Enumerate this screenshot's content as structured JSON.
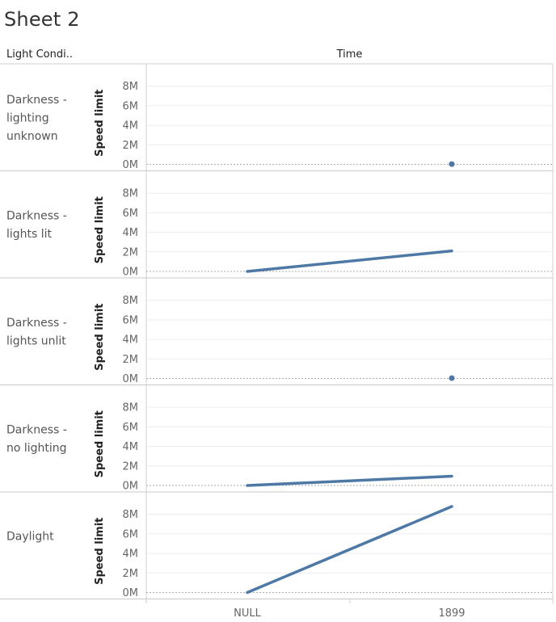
{
  "sheet": {
    "title": "Sheet 2"
  },
  "headers": {
    "row_field": "Light Condi..",
    "column_field": "Time"
  },
  "chart_data": {
    "type": "line",
    "title": "Sheet 2",
    "row_dimension": "Light Condi..",
    "xlabel": "Time",
    "ylabel": "Speed limit",
    "categories": [
      "NULL",
      "1899"
    ],
    "yticks": [
      "0M",
      "2M",
      "4M",
      "6M",
      "8M"
    ],
    "ylim": [
      0,
      8800000
    ],
    "grid": true,
    "line_color": "#4e79a7",
    "panels": [
      {
        "label": "Darkness - lighting unknown",
        "label_lines": [
          "Darkness -",
          "lighting",
          "unknown"
        ],
        "values": [
          null,
          30000
        ]
      },
      {
        "label": "Darkness - lights lit",
        "label_lines": [
          "Darkness -",
          "lights lit"
        ],
        "values": [
          0,
          2100000
        ]
      },
      {
        "label": "Darkness - lights unlit",
        "label_lines": [
          "Darkness -",
          "lights unlit"
        ],
        "values": [
          null,
          30000
        ]
      },
      {
        "label": "Darkness - no lighting",
        "label_lines": [
          "Darkness -",
          "no lighting"
        ],
        "values": [
          0,
          950000
        ]
      },
      {
        "label": "Daylight",
        "label_lines": [
          "Daylight"
        ],
        "values": [
          0,
          8800000
        ]
      }
    ]
  }
}
